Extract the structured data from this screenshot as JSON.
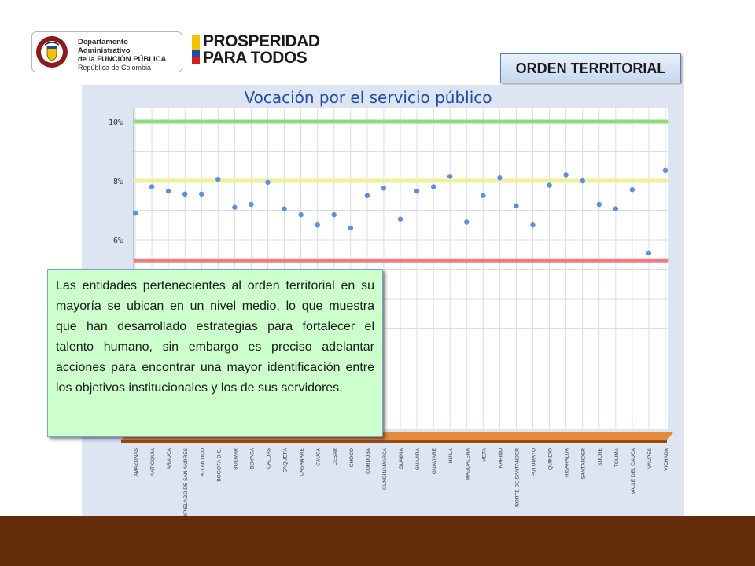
{
  "logos": {
    "dafp": {
      "seal_text": "REPÚBLICA DE COLOMBIA",
      "line1": "Departamento Administrativo",
      "line2": "de la FUNCIÓN PÚBLICA",
      "line3": "República de Colombia"
    },
    "prosperidad": {
      "line1": "PROSPERIDAD",
      "line2": "PARA TODOS",
      "flag_colors": [
        "#f2c500",
        "#1f4aa8",
        "#d91a1a"
      ]
    }
  },
  "badge": {
    "label": "ORDEN TERRITORIAL"
  },
  "callout": {
    "text": "Las entidades pertenecientes al orden territorial en su mayoría se ubican en un nivel medio, lo que muestra que han desarrollado estrategias  para fortalecer el talento humano, sin embargo es preciso adelantar acciones para encontrar una mayor identificación entre los objetivos institucionales y los de sus servidores."
  },
  "chart_data": {
    "type": "scatter",
    "title": "Vocación por el servicio público",
    "yticks": [
      "10%",
      "8%",
      "6%"
    ],
    "ytick_values": [
      10,
      8,
      6
    ],
    "ylim": [
      3,
      10.4
    ],
    "reference_lines": [
      {
        "value": 10,
        "color": "#8edc7e"
      },
      {
        "value": 8,
        "color": "#f0f09a"
      },
      {
        "value": 5.3,
        "color": "#f07c82"
      }
    ],
    "categories": [
      "AMAZONAS",
      "ANTIOQUIA",
      "ARAUCA",
      "ARCHIPIELAGO DE SAN ANDRES",
      "ATLANTICO",
      "BOGOTÁ D.C.",
      "BOLIVAR",
      "BOYACÁ",
      "CALDAS",
      "CAQUETÁ",
      "CASANARE",
      "CAUCA",
      "CESAR",
      "CHOCO",
      "CORDOBA",
      "CUNDINAMARCA",
      "GUAINIA",
      "GUAJIRA",
      "GUAVIARE",
      "HUILA",
      "MAGDALENA",
      "META",
      "NARIÑO",
      "NORTE DE SANTANDER",
      "PUTUMAYO",
      "QUINDIO",
      "RISARALDA",
      "SANTANDER",
      "SUCRE",
      "TOLIMA",
      "VALLE DEL CAUCA",
      "VAUPES",
      "VICHADA"
    ],
    "values": [
      6.9,
      7.8,
      7.65,
      7.55,
      7.55,
      8.05,
      7.1,
      7.2,
      7.95,
      7.05,
      6.85,
      6.5,
      6.85,
      6.4,
      7.5,
      7.75,
      6.7,
      7.65,
      7.8,
      8.15,
      6.6,
      7.5,
      8.1,
      7.15,
      6.5,
      7.85,
      8.2,
      8.0,
      7.2,
      7.05,
      7.7,
      5.55,
      8.35
    ],
    "point_color": "#5b8fe0",
    "grid": true
  }
}
